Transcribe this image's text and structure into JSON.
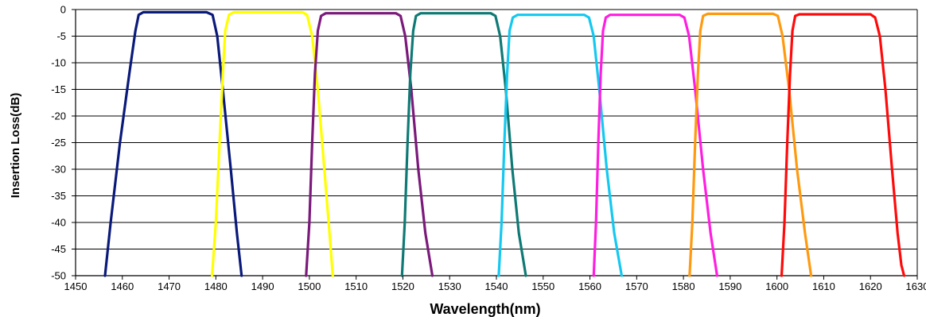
{
  "chart_data": {
    "type": "line",
    "title": "",
    "xlabel": "Wavelength(nm)",
    "ylabel": "Insertion Loss(dB)",
    "xlim": [
      1450,
      1630
    ],
    "ylim": [
      -50,
      0
    ],
    "x_ticks": [
      1450,
      1460,
      1470,
      1480,
      1490,
      1500,
      1510,
      1520,
      1530,
      1540,
      1550,
      1560,
      1570,
      1580,
      1590,
      1600,
      1610,
      1620,
      1630
    ],
    "y_ticks": [
      0,
      -5,
      -10,
      -15,
      -20,
      -25,
      -30,
      -35,
      -40,
      -45,
      -50
    ],
    "grid": "horizontal",
    "legend": "none",
    "series": [
      {
        "color": "#0a1a7a",
        "points": [
          [
            1456.3,
            -50
          ],
          [
            1457.5,
            -40
          ],
          [
            1459.5,
            -25
          ],
          [
            1461.5,
            -12
          ],
          [
            1462.8,
            -4
          ],
          [
            1463.5,
            -1
          ],
          [
            1464.5,
            -0.5
          ],
          [
            1478,
            -0.5
          ],
          [
            1479.3,
            -1
          ],
          [
            1480.3,
            -5
          ],
          [
            1481.5,
            -15
          ],
          [
            1483.2,
            -30
          ],
          [
            1484.5,
            -42
          ],
          [
            1485.5,
            -50
          ]
        ]
      },
      {
        "color": "#ffff00",
        "points": [
          [
            1479.2,
            -50
          ],
          [
            1480,
            -40
          ],
          [
            1480.8,
            -25
          ],
          [
            1481.5,
            -12
          ],
          [
            1482,
            -4
          ],
          [
            1482.8,
            -1
          ],
          [
            1483.8,
            -0.5
          ],
          [
            1498.5,
            -0.5
          ],
          [
            1499.5,
            -1
          ],
          [
            1500.6,
            -5
          ],
          [
            1501.8,
            -15
          ],
          [
            1503.2,
            -30
          ],
          [
            1504.3,
            -42
          ],
          [
            1505,
            -50
          ]
        ]
      },
      {
        "color": "#7b1a7b",
        "points": [
          [
            1499.3,
            -50
          ],
          [
            1500,
            -40
          ],
          [
            1500.6,
            -25
          ],
          [
            1501.2,
            -12
          ],
          [
            1501.8,
            -4
          ],
          [
            1502.5,
            -1.2
          ],
          [
            1503.5,
            -0.7
          ],
          [
            1518.5,
            -0.7
          ],
          [
            1519.5,
            -1.2
          ],
          [
            1520.5,
            -5
          ],
          [
            1521.8,
            -15
          ],
          [
            1523.3,
            -30
          ],
          [
            1524.8,
            -42
          ],
          [
            1526.3,
            -50
          ]
        ]
      },
      {
        "color": "#0f7a75",
        "points": [
          [
            1519.8,
            -50
          ],
          [
            1520.4,
            -40
          ],
          [
            1521,
            -25
          ],
          [
            1521.6,
            -12
          ],
          [
            1522.2,
            -4
          ],
          [
            1522.8,
            -1.2
          ],
          [
            1523.8,
            -0.7
          ],
          [
            1538.8,
            -0.7
          ],
          [
            1539.8,
            -1.2
          ],
          [
            1540.8,
            -5
          ],
          [
            1542,
            -15
          ],
          [
            1543.4,
            -30
          ],
          [
            1544.8,
            -42
          ],
          [
            1546.3,
            -50
          ]
        ]
      },
      {
        "color": "#14c8f0",
        "points": [
          [
            1540.5,
            -50
          ],
          [
            1541.1,
            -40
          ],
          [
            1541.7,
            -25
          ],
          [
            1542.3,
            -12
          ],
          [
            1542.8,
            -4
          ],
          [
            1543.5,
            -1.5
          ],
          [
            1544.5,
            -1
          ],
          [
            1558.8,
            -1
          ],
          [
            1559.8,
            -1.5
          ],
          [
            1560.8,
            -5
          ],
          [
            1562,
            -15
          ],
          [
            1563.6,
            -30
          ],
          [
            1565.2,
            -42
          ],
          [
            1566.8,
            -50
          ]
        ]
      },
      {
        "color": "#ff1ee0",
        "points": [
          [
            1560.8,
            -50
          ],
          [
            1561.3,
            -40
          ],
          [
            1561.8,
            -25
          ],
          [
            1562.3,
            -12
          ],
          [
            1562.8,
            -4
          ],
          [
            1563.4,
            -1.5
          ],
          [
            1564.3,
            -1
          ],
          [
            1579.2,
            -1
          ],
          [
            1580.2,
            -1.5
          ],
          [
            1581.2,
            -5
          ],
          [
            1582.5,
            -15
          ],
          [
            1584.2,
            -30
          ],
          [
            1585.8,
            -42
          ],
          [
            1587.2,
            -50
          ]
        ]
      },
      {
        "color": "#ff9a10",
        "points": [
          [
            1581.3,
            -50
          ],
          [
            1581.9,
            -40
          ],
          [
            1582.5,
            -25
          ],
          [
            1583.1,
            -12
          ],
          [
            1583.6,
            -4
          ],
          [
            1584.2,
            -1.2
          ],
          [
            1585.2,
            -0.8
          ],
          [
            1599.2,
            -0.8
          ],
          [
            1600.2,
            -1.2
          ],
          [
            1601.2,
            -5
          ],
          [
            1602.6,
            -15
          ],
          [
            1604.3,
            -30
          ],
          [
            1606,
            -42
          ],
          [
            1607.3,
            -50
          ]
        ]
      },
      {
        "color": "#ff0a0a",
        "points": [
          [
            1601,
            -50
          ],
          [
            1601.6,
            -40
          ],
          [
            1602.2,
            -25
          ],
          [
            1602.8,
            -12
          ],
          [
            1603.3,
            -4
          ],
          [
            1603.9,
            -1.2
          ],
          [
            1604.8,
            -0.9
          ],
          [
            1620,
            -0.9
          ],
          [
            1621,
            -1.5
          ],
          [
            1622,
            -5
          ],
          [
            1623.2,
            -15
          ],
          [
            1624.6,
            -30
          ],
          [
            1625.8,
            -42
          ],
          [
            1626.6,
            -48
          ],
          [
            1627.2,
            -50
          ]
        ]
      }
    ]
  }
}
